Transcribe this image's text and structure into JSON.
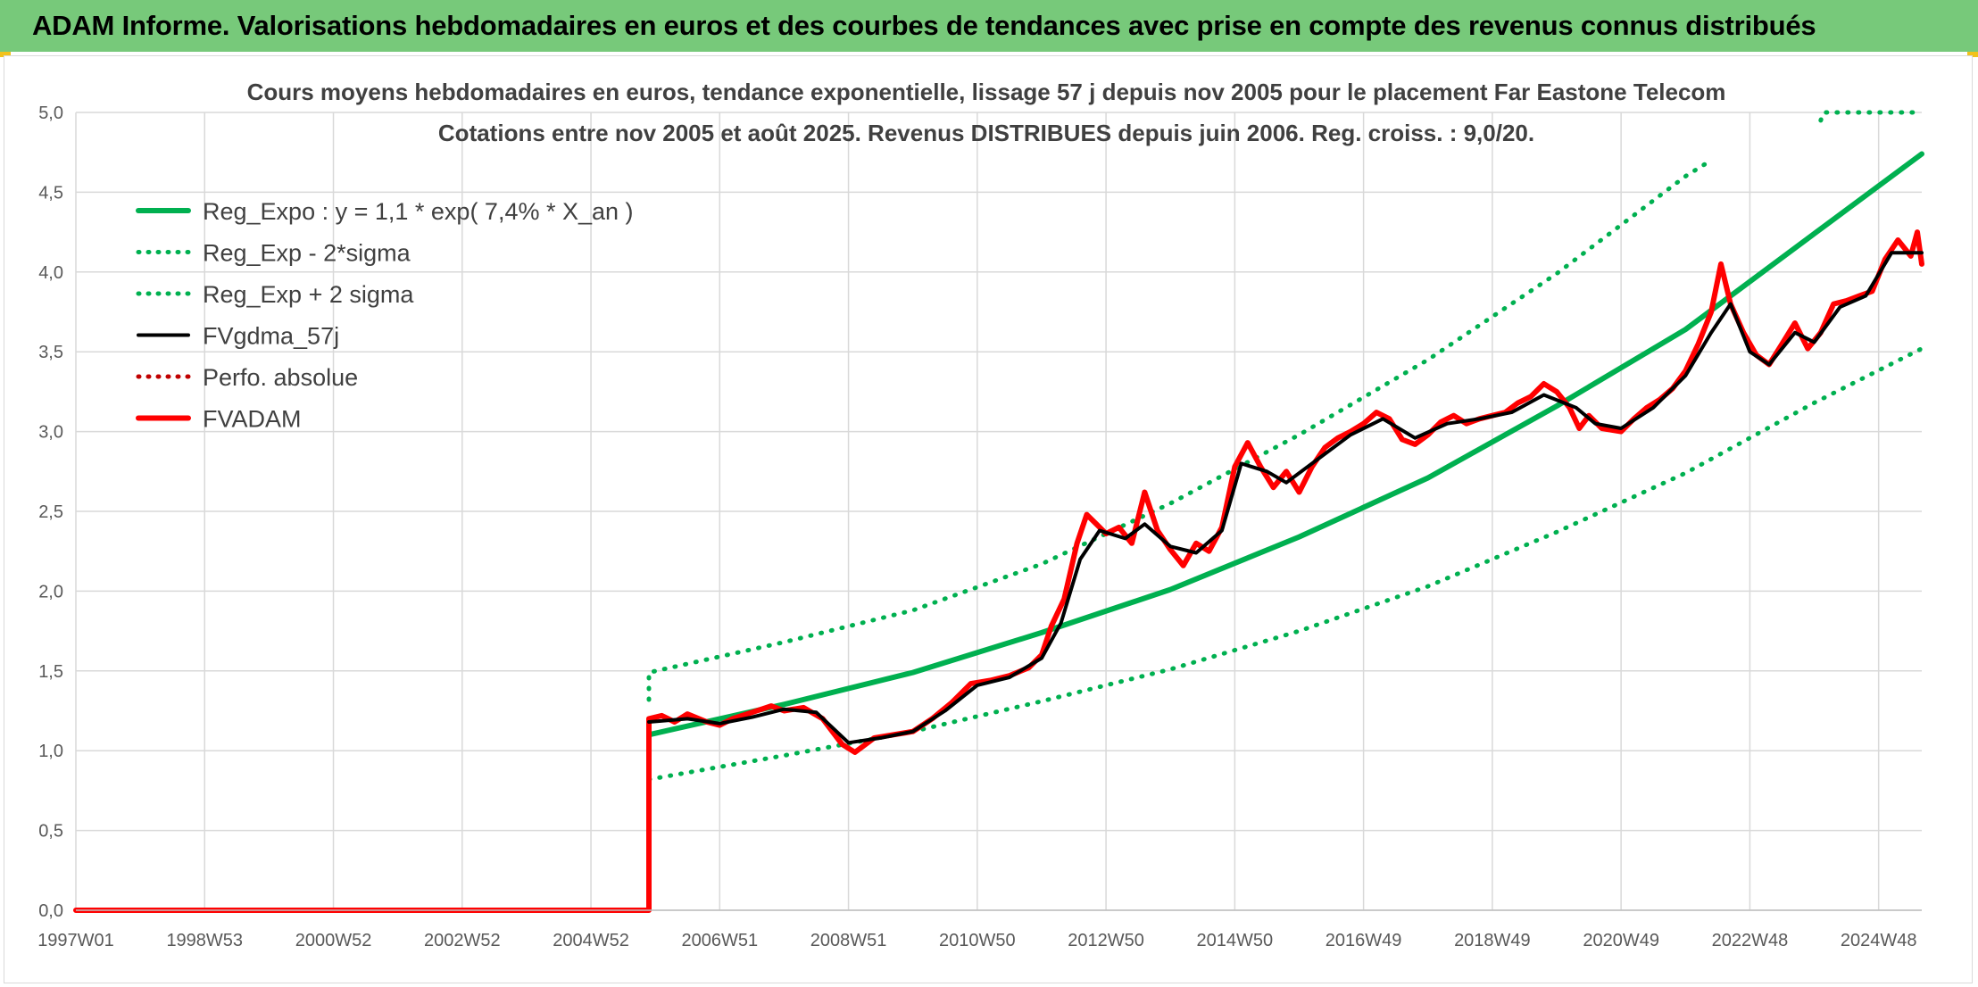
{
  "banner": {
    "title": "ADAM Informe. Valorisations hebdomadaires en euros et des courbes de tendances avec prise en compte des revenus connus distribués"
  },
  "colors": {
    "banner_bg": "#77c97a",
    "regression": "#00b050",
    "gdma": "#000000",
    "fvadam": "#ff0000",
    "perf": "#c00000",
    "grid": "#d9d9d9",
    "corner_accent": "#f2c21b"
  },
  "chart_data": {
    "type": "line",
    "title": [
      "Cours moyens hebdomadaires en euros, tendance exponentielle, lissage 57 j depuis nov 2005 pour le placement Far Eastone Telecom",
      "Cotations entre nov 2005 et août 2025. Revenus DISTRIBUES depuis juin 2006. Reg. croiss. : 9,0/20."
    ],
    "xlabel": "",
    "ylabel": "",
    "x_range": [
      1997.0,
      2025.67
    ],
    "ylim": [
      0,
      5
    ],
    "y_ticks": [
      "0,0",
      "0,5",
      "1,0",
      "1,5",
      "2,0",
      "2,5",
      "3,0",
      "3,5",
      "4,0",
      "4,5",
      "5,0"
    ],
    "x_ticks": [
      {
        "label": "1997W01",
        "year": 1997.0
      },
      {
        "label": "1998W53",
        "year": 1999.0
      },
      {
        "label": "2000W52",
        "year": 2001.0
      },
      {
        "label": "2002W52",
        "year": 2003.0
      },
      {
        "label": "2004W52",
        "year": 2005.0
      },
      {
        "label": "2006W51",
        "year": 2007.0
      },
      {
        "label": "2008W51",
        "year": 2009.0
      },
      {
        "label": "2010W50",
        "year": 2011.0
      },
      {
        "label": "2012W50",
        "year": 2013.0
      },
      {
        "label": "2014W50",
        "year": 2015.0
      },
      {
        "label": "2016W49",
        "year": 2017.0
      },
      {
        "label": "2018W49",
        "year": 2019.0
      },
      {
        "label": "2020W49",
        "year": 2021.0
      },
      {
        "label": "2022W48",
        "year": 2023.0
      },
      {
        "label": "2024W48",
        "year": 2025.0
      }
    ],
    "grid": "vertical and horizontal",
    "legend_position": "top-left",
    "series": [
      {
        "name": "Reg_Expo : y = 1,1 * exp( 7,4% *  X_an )",
        "style": "solid-thick",
        "color": "#00b050",
        "points": [
          [
            2005.9,
            1.1
          ],
          [
            2008,
            1.29
          ],
          [
            2010,
            1.49
          ],
          [
            2012,
            1.74
          ],
          [
            2014,
            2.01
          ],
          [
            2016,
            2.34
          ],
          [
            2018,
            2.71
          ],
          [
            2020,
            3.16
          ],
          [
            2022,
            3.64
          ],
          [
            2024,
            4.24
          ],
          [
            2025.67,
            4.74
          ]
        ]
      },
      {
        "name": "Reg_Exp - 2*sigma",
        "style": "dotted",
        "color": "#00b050",
        "points": [
          [
            2005.9,
            0.82
          ],
          [
            2008,
            0.97
          ],
          [
            2010,
            1.12
          ],
          [
            2012,
            1.31
          ],
          [
            2014,
            1.51
          ],
          [
            2016,
            1.75
          ],
          [
            2018,
            2.03
          ],
          [
            2020,
            2.37
          ],
          [
            2022,
            2.74
          ],
          [
            2024,
            3.18
          ],
          [
            2025.67,
            3.52
          ]
        ]
      },
      {
        "name": "Reg_Exp + 2 sigma",
        "style": "dotted",
        "color": "#00b050",
        "points": [
          [
            2005.9,
            1.32
          ],
          [
            2005.9,
            1.49
          ],
          [
            2008,
            1.68
          ],
          [
            2010,
            1.88
          ],
          [
            2012,
            2.17
          ],
          [
            2014,
            2.55
          ],
          [
            2016,
            2.98
          ],
          [
            2018,
            3.45
          ],
          [
            2020,
            3.99
          ],
          [
            2022,
            4.6
          ],
          [
            2022.4,
            4.7
          ]
        ],
        "clipped_segment": [
          [
            2024.1,
            4.95
          ],
          [
            2024.15,
            5.0
          ],
          [
            2025.67,
            5.0
          ]
        ]
      },
      {
        "name": "FVgdma_57j",
        "style": "solid",
        "color": "#000000",
        "points": [
          [
            2005.9,
            1.18
          ],
          [
            2006.5,
            1.2
          ],
          [
            2007,
            1.17
          ],
          [
            2007.5,
            1.21
          ],
          [
            2008,
            1.26
          ],
          [
            2008.5,
            1.24
          ],
          [
            2009,
            1.05
          ],
          [
            2009.5,
            1.08
          ],
          [
            2010,
            1.12
          ],
          [
            2010.5,
            1.25
          ],
          [
            2011,
            1.41
          ],
          [
            2011.5,
            1.46
          ],
          [
            2012,
            1.58
          ],
          [
            2012.3,
            1.8
          ],
          [
            2012.6,
            2.2
          ],
          [
            2012.9,
            2.38
          ],
          [
            2013.3,
            2.33
          ],
          [
            2013.6,
            2.42
          ],
          [
            2014,
            2.28
          ],
          [
            2014.4,
            2.24
          ],
          [
            2014.8,
            2.38
          ],
          [
            2015.1,
            2.8
          ],
          [
            2015.5,
            2.75
          ],
          [
            2015.8,
            2.68
          ],
          [
            2016.3,
            2.83
          ],
          [
            2016.8,
            2.98
          ],
          [
            2017.3,
            3.08
          ],
          [
            2017.8,
            2.96
          ],
          [
            2018.3,
            3.05
          ],
          [
            2018.8,
            3.08
          ],
          [
            2019.3,
            3.12
          ],
          [
            2019.8,
            3.23
          ],
          [
            2020.3,
            3.15
          ],
          [
            2020.6,
            3.05
          ],
          [
            2021,
            3.02
          ],
          [
            2021.5,
            3.15
          ],
          [
            2022,
            3.35
          ],
          [
            2022.4,
            3.62
          ],
          [
            2022.7,
            3.8
          ],
          [
            2023,
            3.5
          ],
          [
            2023.3,
            3.42
          ],
          [
            2023.7,
            3.62
          ],
          [
            2024,
            3.56
          ],
          [
            2024.4,
            3.78
          ],
          [
            2024.8,
            3.85
          ],
          [
            2025.2,
            4.12
          ],
          [
            2025.67,
            4.12
          ]
        ]
      },
      {
        "name": "Perfo. absolue",
        "style": "dotted",
        "color": "#c00000",
        "points": []
      },
      {
        "name": "FVADAM",
        "style": "solid-thick",
        "color": "#ff0000",
        "points": [
          [
            1997.0,
            0.0
          ],
          [
            2005.9,
            0.0
          ],
          [
            2005.9,
            1.2
          ],
          [
            2006.1,
            1.22
          ],
          [
            2006.3,
            1.18
          ],
          [
            2006.5,
            1.23
          ],
          [
            2006.8,
            1.18
          ],
          [
            2007,
            1.16
          ],
          [
            2007.2,
            1.2
          ],
          [
            2007.5,
            1.24
          ],
          [
            2007.8,
            1.28
          ],
          [
            2008,
            1.25
          ],
          [
            2008.3,
            1.27
          ],
          [
            2008.6,
            1.2
          ],
          [
            2008.9,
            1.04
          ],
          [
            2009.1,
            0.99
          ],
          [
            2009.4,
            1.08
          ],
          [
            2009.7,
            1.1
          ],
          [
            2010,
            1.12
          ],
          [
            2010.3,
            1.2
          ],
          [
            2010.6,
            1.3
          ],
          [
            2010.9,
            1.42
          ],
          [
            2011.2,
            1.44
          ],
          [
            2011.5,
            1.47
          ],
          [
            2011.8,
            1.52
          ],
          [
            2012,
            1.6
          ],
          [
            2012.15,
            1.78
          ],
          [
            2012.35,
            1.95
          ],
          [
            2012.55,
            2.3
          ],
          [
            2012.7,
            2.48
          ],
          [
            2012.85,
            2.42
          ],
          [
            2013.0,
            2.36
          ],
          [
            2013.2,
            2.4
          ],
          [
            2013.4,
            2.3
          ],
          [
            2013.6,
            2.62
          ],
          [
            2013.8,
            2.38
          ],
          [
            2014.0,
            2.26
          ],
          [
            2014.2,
            2.16
          ],
          [
            2014.4,
            2.3
          ],
          [
            2014.6,
            2.25
          ],
          [
            2014.8,
            2.4
          ],
          [
            2015.0,
            2.78
          ],
          [
            2015.2,
            2.93
          ],
          [
            2015.4,
            2.78
          ],
          [
            2015.6,
            2.65
          ],
          [
            2015.8,
            2.75
          ],
          [
            2016.0,
            2.62
          ],
          [
            2016.2,
            2.78
          ],
          [
            2016.4,
            2.9
          ],
          [
            2016.6,
            2.96
          ],
          [
            2016.8,
            3.0
          ],
          [
            2017.0,
            3.05
          ],
          [
            2017.2,
            3.12
          ],
          [
            2017.4,
            3.08
          ],
          [
            2017.6,
            2.95
          ],
          [
            2017.8,
            2.92
          ],
          [
            2018.0,
            2.98
          ],
          [
            2018.2,
            3.06
          ],
          [
            2018.4,
            3.1
          ],
          [
            2018.6,
            3.05
          ],
          [
            2018.8,
            3.08
          ],
          [
            2019.0,
            3.1
          ],
          [
            2019.2,
            3.12
          ],
          [
            2019.4,
            3.18
          ],
          [
            2019.6,
            3.22
          ],
          [
            2019.8,
            3.3
          ],
          [
            2020.0,
            3.25
          ],
          [
            2020.2,
            3.15
          ],
          [
            2020.35,
            3.02
          ],
          [
            2020.5,
            3.1
          ],
          [
            2020.7,
            3.02
          ],
          [
            2021.0,
            3.0
          ],
          [
            2021.2,
            3.08
          ],
          [
            2021.4,
            3.15
          ],
          [
            2021.6,
            3.2
          ],
          [
            2021.8,
            3.27
          ],
          [
            2022.0,
            3.38
          ],
          [
            2022.2,
            3.55
          ],
          [
            2022.4,
            3.75
          ],
          [
            2022.55,
            4.05
          ],
          [
            2022.7,
            3.8
          ],
          [
            2022.9,
            3.62
          ],
          [
            2023.1,
            3.48
          ],
          [
            2023.3,
            3.42
          ],
          [
            2023.5,
            3.55
          ],
          [
            2023.7,
            3.68
          ],
          [
            2023.9,
            3.52
          ],
          [
            2024.1,
            3.62
          ],
          [
            2024.3,
            3.8
          ],
          [
            2024.5,
            3.82
          ],
          [
            2024.7,
            3.85
          ],
          [
            2024.9,
            3.88
          ],
          [
            2025.1,
            4.08
          ],
          [
            2025.3,
            4.2
          ],
          [
            2025.5,
            4.1
          ],
          [
            2025.6,
            4.25
          ],
          [
            2025.67,
            4.05
          ]
        ]
      }
    ]
  }
}
